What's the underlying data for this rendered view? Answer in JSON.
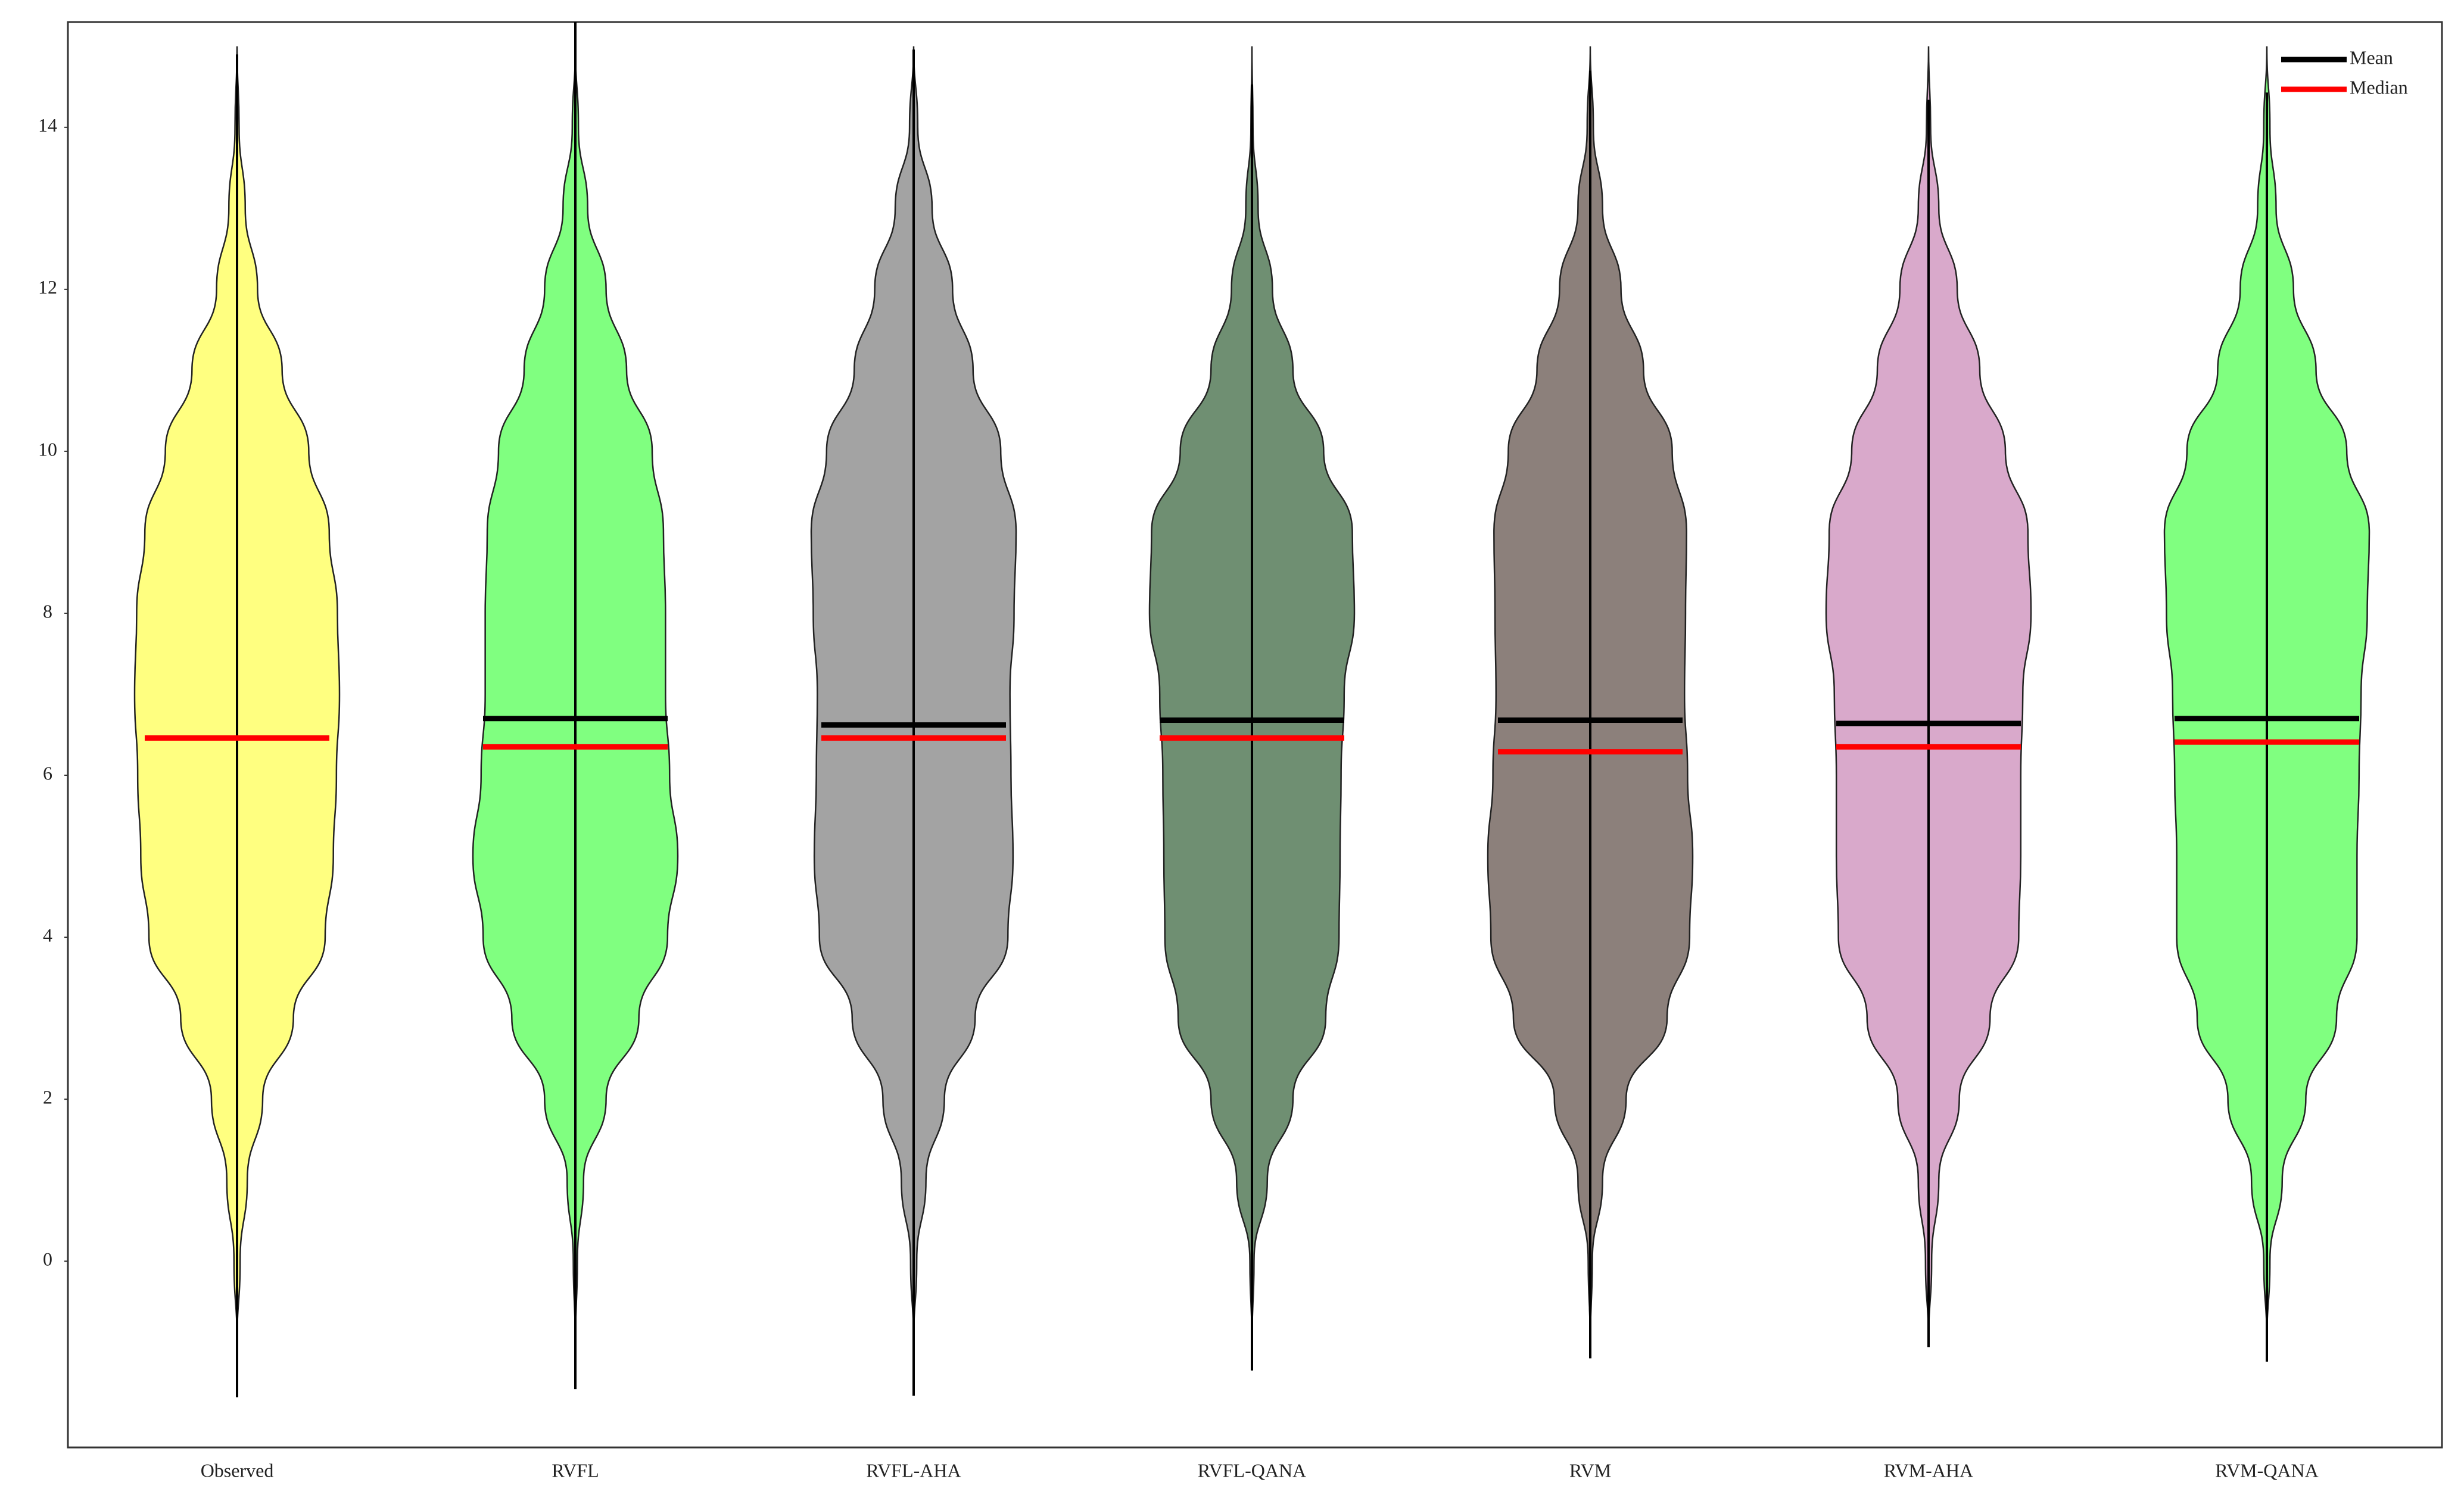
{
  "chart_data": {
    "type": "violin",
    "categories": [
      "Observed",
      "RVFL",
      "RVFL-AHA",
      "RVFL-QANA",
      "RVM",
      "RVM-AHA",
      "RVM-QANA"
    ],
    "colors": [
      "#ffff80",
      "#80ff80",
      "#a3a3a3",
      "#6f8f72",
      "#8c807b",
      "#d9a9cb",
      "#80ff80"
    ],
    "means": [
      null,
      6.7,
      6.62,
      6.68,
      6.68,
      6.64,
      6.7
    ],
    "medians": [
      6.46,
      6.35,
      6.46,
      6.46,
      6.29,
      6.35,
      6.41
    ],
    "min": [
      -1.68,
      -1.58,
      -1.66,
      -1.35,
      -1.2,
      -1.06,
      -1.24
    ],
    "max": [
      14.9,
      15.3,
      14.96,
      14.53,
      14.7,
      14.34,
      14.43
    ],
    "density_y": [
      -1,
      0,
      1,
      2,
      3,
      4,
      5,
      6,
      7,
      8,
      9,
      10,
      11,
      12,
      13,
      14,
      15
    ],
    "widths": [
      [
        0,
        0.03,
        0.1,
        0.25,
        0.55,
        0.86,
        0.94,
        0.97,
        1,
        0.98,
        0.9,
        0.7,
        0.44,
        0.2,
        0.08,
        0.02,
        0
      ],
      [
        0,
        0.02,
        0.08,
        0.3,
        0.62,
        0.9,
        1,
        0.92,
        0.88,
        0.88,
        0.86,
        0.75,
        0.5,
        0.3,
        0.12,
        0.03,
        0
      ],
      [
        0,
        0.03,
        0.12,
        0.3,
        0.6,
        0.92,
        0.97,
        0.95,
        0.94,
        0.98,
        1,
        0.85,
        0.58,
        0.38,
        0.18,
        0.04,
        0
      ],
      [
        0,
        0.02,
        0.15,
        0.4,
        0.72,
        0.85,
        0.86,
        0.87,
        0.9,
        1,
        0.98,
        0.7,
        0.4,
        0.2,
        0.06,
        0.01,
        0
      ],
      [
        0,
        0.02,
        0.12,
        0.35,
        0.75,
        0.97,
        1,
        0.95,
        0.92,
        0.93,
        0.94,
        0.8,
        0.52,
        0.3,
        0.12,
        0.03,
        0
      ],
      [
        0,
        0.03,
        0.1,
        0.3,
        0.6,
        0.88,
        0.9,
        0.9,
        0.92,
        1,
        0.97,
        0.75,
        0.5,
        0.28,
        0.1,
        0.02,
        0
      ],
      [
        0,
        0.03,
        0.15,
        0.38,
        0.68,
        0.88,
        0.88,
        0.9,
        0.92,
        0.98,
        1,
        0.78,
        0.48,
        0.26,
        0.09,
        0.03,
        0
      ]
    ],
    "legend": [
      {
        "name": "Mean",
        "color": "#000000"
      },
      {
        "name": "Median",
        "color": "#ff0000"
      }
    ],
    "legend_position": "top-right",
    "ylim": [
      -2.3,
      15.3
    ],
    "yticks": [
      0,
      2,
      4,
      6,
      8,
      10,
      12,
      14
    ]
  }
}
